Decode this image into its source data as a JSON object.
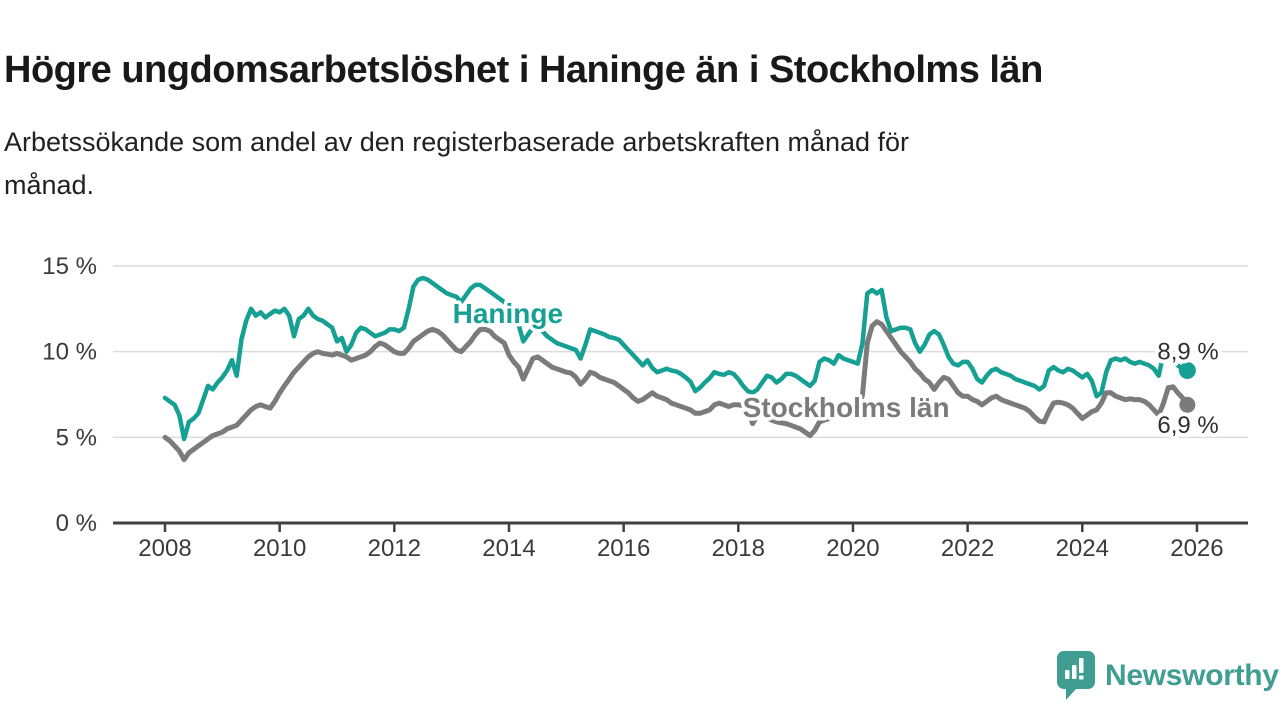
{
  "header": {
    "title": "Högre ungdomsarbetslöshet i Haninge än i Stockholms län",
    "subtitle_lines": [
      "Arbetssökande som andel av den registerbaserade arbetskraften månad för",
      "månad."
    ]
  },
  "branding": {
    "logo_text": "Newsworthy",
    "logo_color": "#3f9e91",
    "logo_icon": "bar-chart-speech-bubble"
  },
  "chart_data": {
    "type": "line",
    "title": "Högre ungdomsarbetslöshet i Haninge än i Stockholms län",
    "subtitle": "Arbetssökande som andel av den registerbaserade arbetskraften månad för månad.",
    "unit": "%",
    "grid": "horizontal",
    "legend_position": "inline-labels",
    "x_start_year": 2008,
    "x_months_per_point": 1,
    "x_end": "2025-11",
    "ylim": [
      0,
      15
    ],
    "yticks": [
      {
        "value": 0,
        "label": "0 %"
      },
      {
        "value": 5,
        "label": "5 %"
      },
      {
        "value": 10,
        "label": "10 %"
      },
      {
        "value": 15,
        "label": "15 %"
      }
    ],
    "xticks": [
      {
        "value": 2008,
        "label": "2008"
      },
      {
        "value": 2010,
        "label": "2010"
      },
      {
        "value": 2012,
        "label": "2012"
      },
      {
        "value": 2014,
        "label": "2014"
      },
      {
        "value": 2016,
        "label": "2016"
      },
      {
        "value": 2018,
        "label": "2018"
      },
      {
        "value": 2020,
        "label": "2020"
      },
      {
        "value": 2022,
        "label": "2022"
      },
      {
        "value": 2024,
        "label": "2024"
      },
      {
        "value": 2026,
        "label": "2026"
      }
    ],
    "series": [
      {
        "name": "Stockholms län",
        "color": "#7b7b7b",
        "end_label": "6,9 %",
        "end_value": 6.9,
        "label_pos": {
          "year": 2019.88,
          "value": 6.77
        },
        "values": [
          5.0,
          4.8,
          4.5,
          4.2,
          3.7,
          4.1,
          4.3,
          4.5,
          4.7,
          4.9,
          5.1,
          5.2,
          5.3,
          5.5,
          5.6,
          5.7,
          6.0,
          6.3,
          6.6,
          6.8,
          6.9,
          6.8,
          6.7,
          7.1,
          7.6,
          8.0,
          8.4,
          8.8,
          9.1,
          9.4,
          9.7,
          9.9,
          10.0,
          9.9,
          9.85,
          9.8,
          9.9,
          9.8,
          9.7,
          9.5,
          9.6,
          9.7,
          9.8,
          10.0,
          10.3,
          10.5,
          10.4,
          10.2,
          10.0,
          9.9,
          9.9,
          10.2,
          10.6,
          10.8,
          11.0,
          11.2,
          11.3,
          11.2,
          11.0,
          10.7,
          10.4,
          10.1,
          10.0,
          10.3,
          10.6,
          11.0,
          11.3,
          11.3,
          11.2,
          10.9,
          10.7,
          10.5,
          9.8,
          9.4,
          9.1,
          8.4,
          9.0,
          9.6,
          9.7,
          9.5,
          9.3,
          9.1,
          9.0,
          8.9,
          8.8,
          8.75,
          8.5,
          8.1,
          8.4,
          8.8,
          8.7,
          8.5,
          8.4,
          8.3,
          8.2,
          8.0,
          7.8,
          7.6,
          7.3,
          7.1,
          7.2,
          7.4,
          7.6,
          7.4,
          7.3,
          7.2,
          7.0,
          6.9,
          6.8,
          6.7,
          6.6,
          6.4,
          6.4,
          6.5,
          6.6,
          6.9,
          7.0,
          6.9,
          6.8,
          6.9,
          6.9,
          6.85,
          6.7,
          5.8,
          6.3,
          6.3,
          6.2,
          6.0,
          5.9,
          5.85,
          5.8,
          5.7,
          5.6,
          5.5,
          5.3,
          5.1,
          5.4,
          5.9,
          6.0,
          6.1,
          6.2,
          6.3,
          6.3,
          6.3,
          6.3,
          6.4,
          7.5,
          10.5,
          11.5,
          11.75,
          11.6,
          11.2,
          10.8,
          10.4,
          10.0,
          9.7,
          9.4,
          9.0,
          8.75,
          8.4,
          8.2,
          7.8,
          8.2,
          8.5,
          8.4,
          8.0,
          7.6,
          7.4,
          7.4,
          7.2,
          7.1,
          6.9,
          7.1,
          7.3,
          7.4,
          7.2,
          7.1,
          7.0,
          6.9,
          6.8,
          6.7,
          6.5,
          6.2,
          5.95,
          5.9,
          6.5,
          7.0,
          7.05,
          7.0,
          6.9,
          6.7,
          6.4,
          6.1,
          6.3,
          6.5,
          6.6,
          7.0,
          7.6,
          7.6,
          7.4,
          7.3,
          7.2,
          7.25,
          7.2,
          7.2,
          7.1,
          6.9,
          6.6,
          6.3,
          7.0,
          7.9,
          7.95,
          7.6,
          7.3,
          6.9
        ]
      },
      {
        "name": "Haninge",
        "color": "#16a094",
        "end_label": "8,9 %",
        "end_value": 8.9,
        "label_pos": {
          "year": 2013.98,
          "value": 12.26
        },
        "values": [
          7.3,
          7.1,
          6.9,
          6.3,
          4.9,
          5.9,
          6.1,
          6.4,
          7.2,
          8.0,
          7.8,
          8.2,
          8.5,
          8.9,
          9.5,
          8.6,
          10.7,
          11.8,
          12.5,
          12.1,
          12.3,
          12.0,
          12.2,
          12.4,
          12.3,
          12.5,
          12.1,
          10.9,
          11.9,
          12.1,
          12.5,
          12.1,
          11.9,
          11.8,
          11.6,
          11.4,
          10.6,
          10.8,
          10.0,
          10.4,
          11.1,
          11.4,
          11.3,
          11.1,
          10.9,
          11.0,
          11.1,
          11.3,
          11.3,
          11.2,
          11.4,
          12.5,
          13.8,
          14.2,
          14.3,
          14.2,
          14.0,
          13.8,
          13.6,
          13.4,
          13.3,
          13.2,
          12.9,
          13.3,
          13.7,
          13.9,
          13.9,
          13.7,
          13.5,
          13.3,
          13.1,
          12.9,
          12.8,
          12.3,
          11.6,
          10.6,
          11.0,
          11.4,
          11.4,
          11.2,
          10.9,
          10.7,
          10.5,
          10.4,
          10.3,
          10.2,
          10.1,
          9.6,
          10.4,
          11.3,
          11.2,
          11.1,
          11.0,
          10.85,
          10.8,
          10.7,
          10.4,
          10.1,
          9.8,
          9.5,
          9.2,
          9.5,
          9.05,
          8.8,
          8.9,
          9.0,
          8.9,
          8.85,
          8.7,
          8.5,
          8.25,
          7.7,
          7.9,
          8.2,
          8.45,
          8.8,
          8.7,
          8.65,
          8.8,
          8.7,
          8.4,
          8.0,
          7.7,
          7.6,
          7.8,
          8.2,
          8.6,
          8.5,
          8.2,
          8.4,
          8.7,
          8.7,
          8.6,
          8.4,
          8.2,
          8.0,
          8.3,
          9.4,
          9.6,
          9.5,
          9.3,
          9.8,
          9.6,
          9.5,
          9.4,
          9.3,
          10.5,
          13.4,
          13.6,
          13.4,
          13.6,
          12.0,
          11.2,
          11.3,
          11.4,
          11.4,
          11.3,
          10.5,
          10.0,
          10.4,
          11.0,
          11.2,
          11.0,
          10.4,
          9.7,
          9.3,
          9.2,
          9.4,
          9.4,
          9.0,
          8.4,
          8.2,
          8.6,
          8.9,
          9.0,
          8.8,
          8.7,
          8.6,
          8.4,
          8.3,
          8.2,
          8.1,
          8.0,
          7.8,
          8.0,
          8.9,
          9.1,
          8.9,
          8.8,
          9.0,
          8.9,
          8.7,
          8.5,
          8.7,
          8.3,
          7.4,
          7.6,
          8.8,
          9.5,
          9.6,
          9.5,
          9.6,
          9.4,
          9.3,
          9.4,
          9.3,
          9.2,
          9.0,
          8.6,
          9.9,
          9.7,
          9.4,
          9.2,
          9.0,
          8.9
        ]
      }
    ]
  }
}
